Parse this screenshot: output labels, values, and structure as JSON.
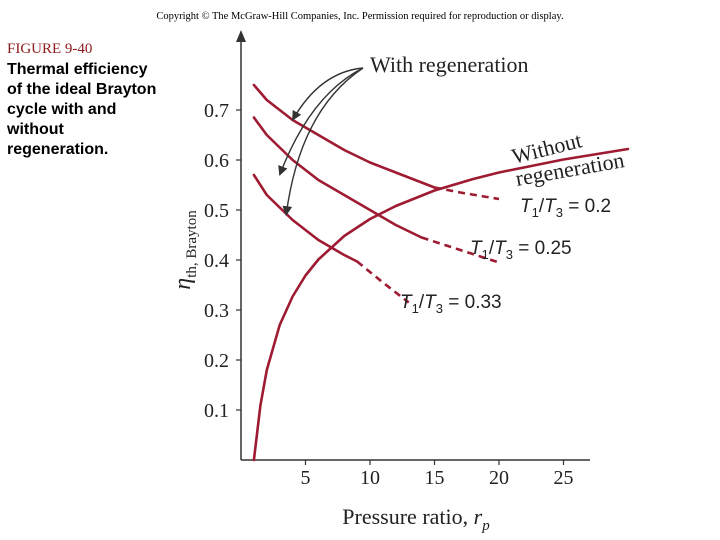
{
  "copyright": "Copyright © The McGraw-Hill Companies, Inc. Permission required for reproduction or display.",
  "figure": {
    "number": "FIGURE 9-40",
    "caption": "Thermal efficiency of the ideal Brayton cycle with and without regeneration."
  },
  "colors": {
    "curve": "#9e1b32",
    "axis": "#333333",
    "arrow": "#333333"
  },
  "chart_data": {
    "type": "line",
    "xlabel": "Pressure ratio, r_p",
    "ylabel": "η_th, Brayton",
    "xlim": [
      0,
      30
    ],
    "ylim": [
      0,
      0.8
    ],
    "xticks": [
      "5",
      "10",
      "15",
      "20",
      "25"
    ],
    "yticks": [
      "0.1",
      "0.2",
      "0.3",
      "0.4",
      "0.5",
      "0.6",
      "0.7"
    ],
    "annotations": [
      "With regeneration",
      "Without regeneration"
    ],
    "series": [
      {
        "name": "Without regeneration",
        "points": [
          [
            1,
            0.0
          ],
          [
            1.5,
            0.109
          ],
          [
            2,
            0.18
          ],
          [
            3,
            0.27
          ],
          [
            4,
            0.327
          ],
          [
            5,
            0.369
          ],
          [
            6,
            0.401
          ],
          [
            8,
            0.448
          ],
          [
            10,
            0.482
          ],
          [
            12,
            0.508
          ],
          [
            15,
            0.539
          ],
          [
            18,
            0.562
          ],
          [
            20,
            0.575
          ],
          [
            25,
            0.601
          ],
          [
            30,
            0.622
          ]
        ]
      },
      {
        "name": "T1/T3 = 0.2",
        "label": "T1/T3 = 0.2",
        "points": [
          [
            1,
            0.75
          ],
          [
            2,
            0.72
          ],
          [
            4,
            0.68
          ],
          [
            6,
            0.65
          ],
          [
            8,
            0.62
          ],
          [
            10,
            0.595
          ],
          [
            12,
            0.575
          ],
          [
            15,
            0.545
          ]
        ],
        "dashed_points": [
          [
            15,
            0.545
          ],
          [
            17,
            0.535
          ],
          [
            20,
            0.522
          ]
        ]
      },
      {
        "name": "T1/T3 = 0.25",
        "label": "T1/T3 = 0.25",
        "points": [
          [
            1,
            0.685
          ],
          [
            2,
            0.65
          ],
          [
            4,
            0.6
          ],
          [
            6,
            0.56
          ],
          [
            8,
            0.53
          ],
          [
            10,
            0.5
          ],
          [
            12,
            0.47
          ],
          [
            14,
            0.445
          ]
        ],
        "dashed_points": [
          [
            14,
            0.445
          ],
          [
            17,
            0.42
          ],
          [
            20,
            0.395
          ]
        ]
      },
      {
        "name": "T1/T3 = 0.33",
        "label": "T1/T3 = 0.33",
        "points": [
          [
            1,
            0.57
          ],
          [
            2,
            0.53
          ],
          [
            4,
            0.48
          ],
          [
            6,
            0.44
          ],
          [
            8,
            0.41
          ],
          [
            9,
            0.397
          ]
        ],
        "dashed_points": [
          [
            9,
            0.397
          ],
          [
            11,
            0.355
          ],
          [
            13,
            0.315
          ]
        ]
      }
    ]
  }
}
